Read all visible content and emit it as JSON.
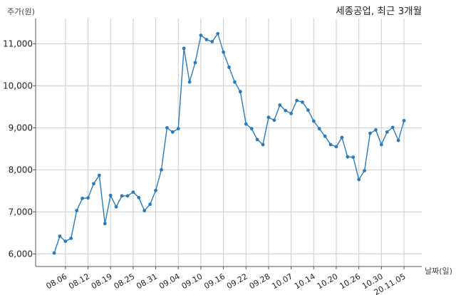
{
  "chart_data": {
    "type": "line",
    "title": "세종공업, 최근 3개월",
    "xlabel": "날짜(일)",
    "ylabel": "주가(원)",
    "ylim": [
      5700,
      11600
    ],
    "grid": true,
    "colors": {
      "line": "#2b7bb9",
      "grid": "#cccccc",
      "axis": "#555555"
    },
    "x_ticks": [
      "08.06",
      "08.12",
      "08.19",
      "08.25",
      "08.31",
      "09.04",
      "09.10",
      "09.16",
      "09.22",
      "09.28",
      "10.07",
      "10.14",
      "10.20",
      "10.26",
      "10.30",
      "20.11.05"
    ],
    "x_tick_index": [
      2,
      6,
      10,
      14,
      18,
      22,
      26,
      30,
      34,
      38,
      42,
      46,
      50,
      54,
      58,
      62
    ],
    "y_ticks": [
      6000,
      7000,
      8000,
      9000,
      10000,
      11000
    ],
    "y_tick_labels": [
      "6,000",
      "7,000",
      "8,000",
      "9,000",
      "10,000",
      "11,000"
    ],
    "series": [
      {
        "values": [
          6020,
          6420,
          6300,
          6370,
          7030,
          7320,
          7330,
          7670,
          7870,
          6720,
          7390,
          7120,
          7380,
          7380,
          7470,
          7340,
          7030,
          7180,
          7510,
          8000,
          9000,
          8900,
          8980,
          10890,
          10090,
          10550,
          11200,
          11100,
          11050,
          11240,
          10800,
          10440,
          10090,
          9860,
          9090,
          8980,
          8720,
          8600,
          9250,
          9180,
          9540,
          9410,
          9340,
          9650,
          9610,
          9420,
          9160,
          8980,
          8800,
          8600,
          8550,
          8770,
          8310,
          8300,
          7770,
          7980,
          8870,
          8950,
          8600,
          8900,
          9010,
          8700,
          9170
        ]
      }
    ]
  }
}
